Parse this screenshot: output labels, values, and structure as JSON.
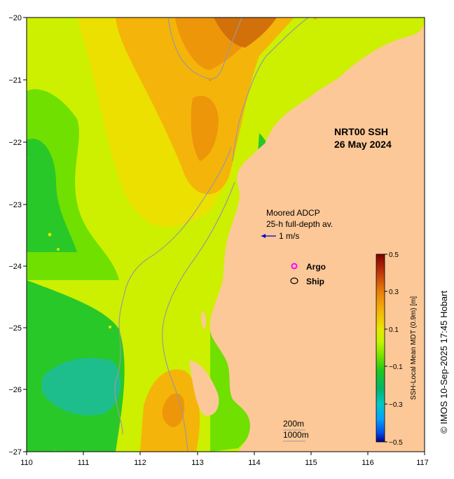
{
  "title": {
    "line1": "NRT00 SSH",
    "line2": "26 May 2024"
  },
  "annotations": {
    "adcp_line1": "Moored ADCP",
    "adcp_line2": "25-h full-depth av.",
    "vector_scale": "1 m/s"
  },
  "legend": {
    "argo": "Argo",
    "ship": "Ship",
    "argo_color": "#ff00ff",
    "ship_color": "#000000"
  },
  "depth_contours": {
    "c200": "200m",
    "c1000": "1000m"
  },
  "colorbar": {
    "label": "SSH-Local Mean MDT (0.9m) [m]",
    "ticks": [
      "0.5",
      "0.3",
      "0.1",
      "−0.1",
      "−0.3",
      "−0.5"
    ],
    "colors": [
      "#7f0000",
      "#c0390b",
      "#e87f0a",
      "#f5b20a",
      "#e8e800",
      "#bff500",
      "#6fe000",
      "#1ec81e",
      "#00b46e",
      "#00c8c8",
      "#00a0ff",
      "#0050e6",
      "#00008c"
    ]
  },
  "credit": "© IMOS 10-Sep-2025 17:45 Hobart",
  "axes": {
    "x_ticks": [
      "110",
      "111",
      "112",
      "113",
      "114",
      "115",
      "116",
      "117"
    ],
    "y_ticks": [
      "−20",
      "−21",
      "−22",
      "−23",
      "−24",
      "−25",
      "−26",
      "−27"
    ]
  },
  "colors": {
    "land": "#fcc897",
    "ssh_high": "#d2700a",
    "ssh_mid": "#f5b40a",
    "ssh_neutral": "#e6e600",
    "ssh_low": "#28c828",
    "ssh_lowest": "#1ebe8c",
    "bathy": "#9a9a9a"
  }
}
